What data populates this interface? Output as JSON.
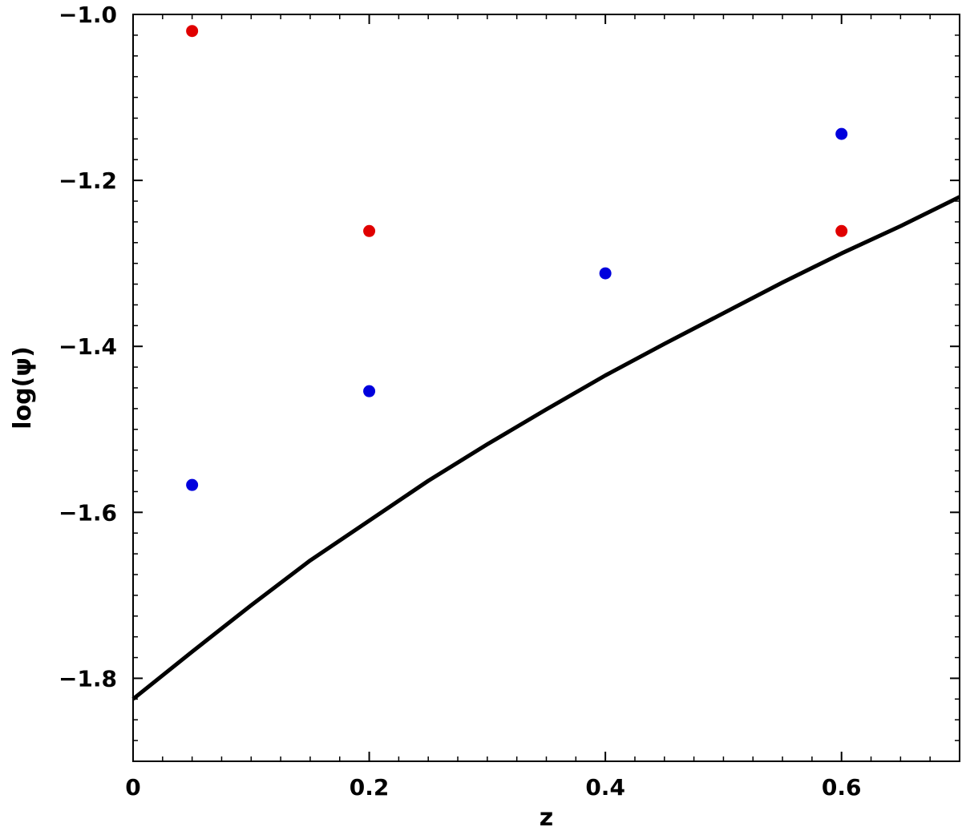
{
  "chart_data": {
    "type": "scatter",
    "xlabel": "z",
    "ylabel": "log(ψ)",
    "xlim": [
      0,
      0.7
    ],
    "ylim": [
      -1.9,
      -1.0
    ],
    "x_ticks": [
      0,
      0.2,
      0.4,
      0.6
    ],
    "x_tick_labels": [
      "0",
      "0.2",
      "0.4",
      "0.6"
    ],
    "y_ticks": [
      -1.0,
      -1.2,
      -1.4,
      -1.6,
      -1.8
    ],
    "y_tick_labels": [
      "−1.0",
      "−1.2",
      "−1.4",
      "−1.6",
      "−1.8"
    ],
    "grid": false,
    "series": [
      {
        "kind": "scatter",
        "color": "#e00000",
        "points": [
          [
            0.05,
            -1.02
          ],
          [
            0.2,
            -1.261
          ],
          [
            0.6,
            -1.261
          ]
        ]
      },
      {
        "kind": "scatter",
        "color": "#0000dd",
        "points": [
          [
            0.05,
            -1.567
          ],
          [
            0.2,
            -1.454
          ],
          [
            0.4,
            -1.312
          ],
          [
            0.6,
            -1.144
          ]
        ]
      },
      {
        "kind": "line",
        "color": "#000000",
        "x": [
          0,
          0.05,
          0.1,
          0.15,
          0.2,
          0.25,
          0.3,
          0.35,
          0.4,
          0.45,
          0.5,
          0.55,
          0.6,
          0.65,
          0.7
        ],
        "y": [
          -1.825,
          -1.768,
          -1.712,
          -1.658,
          -1.61,
          -1.562,
          -1.518,
          -1.476,
          -1.435,
          -1.397,
          -1.36,
          -1.323,
          -1.288,
          -1.255,
          -1.22
        ]
      }
    ]
  }
}
